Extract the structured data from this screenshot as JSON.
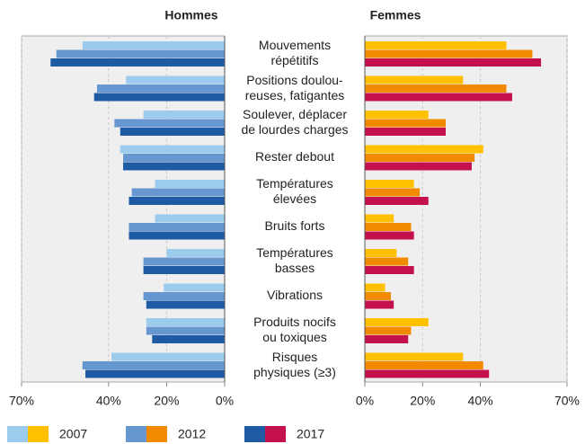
{
  "chart_data": [
    {
      "type": "bar",
      "orientation": "horizontal",
      "direction": "left",
      "title": "Hommes",
      "categories": [
        "Mouvements\nrépétitifs",
        "Positions doulou-\nreuses, fatigantes",
        "Soulever, déplacer\nde lourdes charges",
        "Rester debout",
        "Températures\nélevées",
        "Bruits forts",
        "Températures\nbasses",
        "Vibrations",
        "Produits nocifs\nou toxiques",
        "Risques\nphysiques (≥3)"
      ],
      "xlim": [
        0,
        70
      ],
      "xticks": [
        {
          "value": 70,
          "label": "70%"
        },
        {
          "value": 40,
          "label": "40%"
        },
        {
          "value": 20,
          "label": "20%"
        },
        {
          "value": 0,
          "label": "0%"
        }
      ],
      "grid": true,
      "series": [
        {
          "name": "2007",
          "color": "#9dcbee",
          "values": [
            49,
            34,
            28,
            36,
            24,
            24,
            20,
            21,
            27,
            39
          ]
        },
        {
          "name": "2012",
          "color": "#6797d0",
          "values": [
            58,
            44,
            38,
            35,
            32,
            33,
            28,
            28,
            27,
            49
          ]
        },
        {
          "name": "2017",
          "color": "#1f5ba5",
          "values": [
            60,
            45,
            36,
            35,
            33,
            33,
            28,
            27,
            25,
            48
          ]
        }
      ]
    },
    {
      "type": "bar",
      "orientation": "horizontal",
      "direction": "right",
      "title": "Femmes",
      "xlim": [
        0,
        70
      ],
      "xticks": [
        {
          "value": 0,
          "label": "0%"
        },
        {
          "value": 20,
          "label": "20%"
        },
        {
          "value": 40,
          "label": "40%"
        },
        {
          "value": 70,
          "label": "70%"
        }
      ],
      "grid": true,
      "series": [
        {
          "color": "#ffc000",
          "values": [
            49,
            34,
            22,
            41,
            17,
            10,
            11,
            7,
            22,
            34
          ]
        },
        {
          "color": "#f28a00",
          "values": [
            58,
            49,
            28,
            38,
            19,
            16,
            15,
            9,
            16,
            41
          ]
        },
        {
          "color": "#c4104c",
          "values": [
            61,
            51,
            28,
            37,
            22,
            17,
            17,
            10,
            15,
            43
          ]
        }
      ]
    }
  ]
}
